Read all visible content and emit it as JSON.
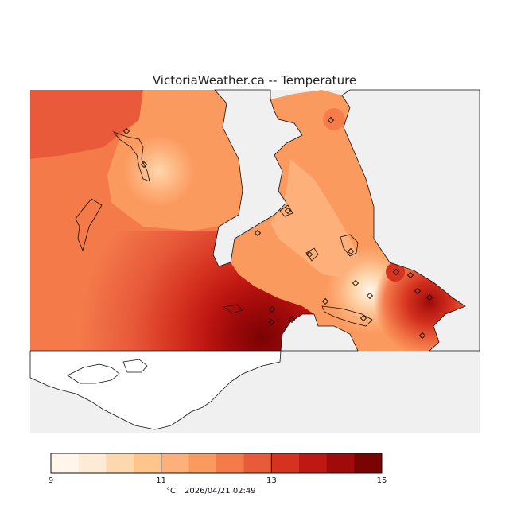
{
  "title": "VictoriaWeather.ca -- Temperature",
  "colors": {
    "water": "#f0f0f0",
    "outline": "#111111",
    "legend": [
      "#fff5eb",
      "#feebd5",
      "#fdd7ad",
      "#fdc48c",
      "#fdb07a",
      "#fb9a5f",
      "#f47a4a",
      "#e85a3a",
      "#d5321f",
      "#bf1712",
      "#a00a0a",
      "#7a0304"
    ]
  },
  "legend": {
    "min": 9,
    "max": 15,
    "tick_labels": [
      "9",
      "11",
      "13",
      "15"
    ],
    "tick_values": [
      9,
      11,
      13,
      15
    ]
  },
  "footer": {
    "unit": "°C",
    "timestamp": "2026/04/21 02:49"
  }
}
